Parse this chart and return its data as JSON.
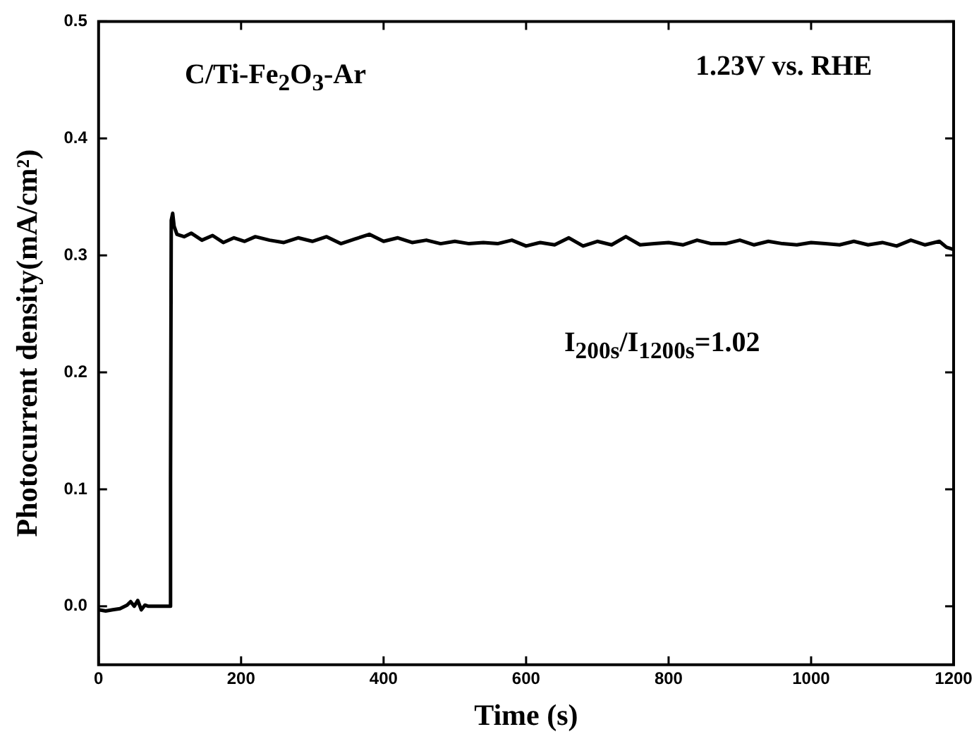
{
  "chart_data": {
    "type": "line",
    "xlabel": "Time (s)",
    "ylabel": "Photocurrent density(mA/cm²)",
    "annotations": [
      "C/Ti-Fe$_{2}$O$_{3}$-Ar",
      "1.23V vs. RHE",
      "I$_{200s}$/I$_{1200s}$=1.02"
    ],
    "xlim": [
      0,
      1200
    ],
    "xticks": [
      0,
      200,
      400,
      600,
      800,
      1000,
      1200
    ],
    "ylim": [
      -0.05,
      0.5
    ],
    "yticks": [
      {
        "value": 0,
        "label": "0.0"
      },
      0.1,
      0.2,
      0.3,
      0.4,
      0.5
    ],
    "grid": false,
    "legend": false,
    "marker": "none",
    "line_style": "solid",
    "series": [
      {
        "color": "#000000",
        "x": [
          0,
          10,
          20,
          30,
          40,
          45,
          50,
          55,
          60,
          65,
          70,
          80,
          90,
          100,
          101,
          102,
          104,
          106,
          110,
          120,
          130,
          145,
          160,
          175,
          190,
          205,
          220,
          240,
          260,
          280,
          300,
          320,
          340,
          360,
          380,
          400,
          420,
          440,
          460,
          480,
          500,
          520,
          540,
          560,
          580,
          600,
          620,
          640,
          660,
          680,
          700,
          720,
          740,
          760,
          780,
          800,
          820,
          840,
          860,
          880,
          900,
          920,
          940,
          960,
          980,
          1000,
          1020,
          1040,
          1060,
          1080,
          1100,
          1120,
          1140,
          1160,
          1180,
          1190,
          1200
        ],
        "values": [
          -0.003,
          -0.004,
          -0.003,
          -0.002,
          0.001,
          0.004,
          0.0,
          0.005,
          -0.003,
          0.001,
          0.0,
          0.0,
          0.0,
          0.0,
          0.11,
          0.33,
          0.336,
          0.325,
          0.318,
          0.316,
          0.319,
          0.313,
          0.317,
          0.311,
          0.315,
          0.312,
          0.316,
          0.313,
          0.311,
          0.315,
          0.312,
          0.316,
          0.31,
          0.314,
          0.318,
          0.312,
          0.315,
          0.311,
          0.313,
          0.31,
          0.312,
          0.31,
          0.311,
          0.31,
          0.313,
          0.308,
          0.311,
          0.309,
          0.315,
          0.308,
          0.312,
          0.309,
          0.316,
          0.309,
          0.31,
          0.311,
          0.309,
          0.313,
          0.31,
          0.31,
          0.313,
          0.309,
          0.312,
          0.31,
          0.309,
          0.311,
          0.31,
          0.309,
          0.312,
          0.309,
          0.311,
          0.308,
          0.313,
          0.309,
          0.312,
          0.307,
          0.305
        ]
      }
    ]
  }
}
